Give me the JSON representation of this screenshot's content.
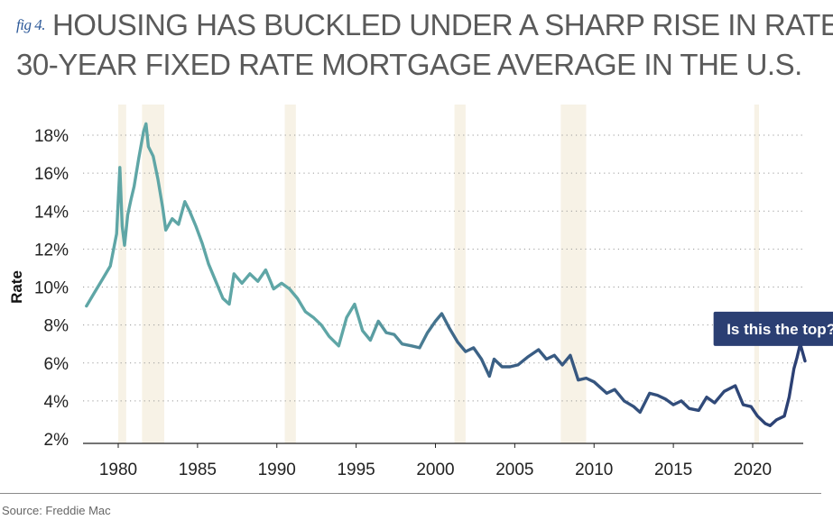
{
  "figure": {
    "fig_label": "fig 4.",
    "title_line1": "HOUSING HAS BUCKLED UNDER A SHARP RISE IN RATES:",
    "title_line2": "30-YEAR FIXED RATE MORTGAGE AVERAGE IN THE U.S.",
    "source": "Source: Freddie Mac"
  },
  "chart_data": {
    "type": "line",
    "title": "",
    "xlabel": "",
    "ylabel": "Rate",
    "xlim": [
      1977.8,
      2023.5
    ],
    "ylim": [
      2,
      19
    ],
    "yticks": [
      2,
      4,
      6,
      8,
      10,
      12,
      14,
      16,
      18
    ],
    "ytick_labels": [
      "2%",
      "4%",
      "6%",
      "8%",
      "10%",
      "12%",
      "14%",
      "16%",
      "18%"
    ],
    "xticks": [
      1980,
      1985,
      1990,
      1995,
      2000,
      2005,
      2010,
      2015,
      2020
    ],
    "xtick_labels": [
      "1980",
      "1985",
      "1990",
      "1995",
      "2000",
      "2005",
      "2010",
      "2015",
      "2020"
    ],
    "grid": "horizontal-dotted",
    "recessions": [
      [
        1980.0,
        1980.5
      ],
      [
        1981.5,
        1982.9
      ],
      [
        1990.5,
        1991.2
      ],
      [
        2001.2,
        2001.9
      ],
      [
        2007.9,
        2009.5
      ],
      [
        2020.1,
        2020.4
      ]
    ],
    "recession_color": "#f7f2e6",
    "line_color_start": "#5fa6a6",
    "line_color_end": "#2b3f73",
    "annotation": {
      "text": "Is this the top?",
      "x": 2021.8,
      "y": 7.8,
      "bg": "#2b3f73",
      "fg": "#ffffff"
    },
    "series": [
      {
        "x": [
          1978.0,
          1978.5,
          1979.0,
          1979.5,
          1979.9,
          1980.1,
          1980.25,
          1980.4,
          1980.6,
          1980.8,
          1981.0,
          1981.3,
          1981.6,
          1981.75,
          1981.9,
          1982.2,
          1982.5,
          1982.8,
          1983.0,
          1983.4,
          1983.8,
          1984.2,
          1984.5,
          1984.9,
          1985.3,
          1985.7,
          1986.2,
          1986.6,
          1987.0,
          1987.3,
          1987.8,
          1988.3,
          1988.8,
          1989.3,
          1989.8,
          1990.3,
          1990.8,
          1991.3,
          1991.8,
          1992.3,
          1992.8,
          1993.3,
          1993.9,
          1994.4,
          1994.9,
          1995.4,
          1995.9,
          1996.4,
          1996.9,
          1997.4,
          1997.9,
          1998.5,
          1999.0,
          1999.5,
          2000.0,
          2000.4,
          2000.9,
          2001.4,
          2001.9,
          2002.4,
          2002.9,
          2003.4,
          2003.7,
          2004.2,
          2004.7,
          2005.2,
          2005.8,
          2006.5,
          2007.0,
          2007.5,
          2008.0,
          2008.5,
          2009.0,
          2009.5,
          2010.0,
          2010.8,
          2011.3,
          2011.9,
          2012.5,
          2012.9,
          2013.5,
          2014.0,
          2014.5,
          2015.0,
          2015.5,
          2016.0,
          2016.6,
          2017.1,
          2017.6,
          2018.2,
          2018.9,
          2019.4,
          2019.9,
          2020.3,
          2020.8,
          2021.1,
          2021.5,
          2022.0,
          2022.3,
          2022.6,
          2022.8,
          2023.0,
          2023.3
        ],
        "y": [
          9.0,
          9.7,
          10.4,
          11.1,
          12.8,
          16.3,
          13.2,
          12.2,
          13.8,
          14.6,
          15.3,
          16.8,
          18.2,
          18.6,
          17.4,
          16.9,
          15.7,
          14.2,
          13.0,
          13.6,
          13.3,
          14.5,
          14.0,
          13.2,
          12.3,
          11.2,
          10.2,
          9.4,
          9.1,
          10.7,
          10.2,
          10.7,
          10.3,
          10.9,
          9.9,
          10.2,
          9.9,
          9.4,
          8.7,
          8.4,
          8.0,
          7.4,
          6.9,
          8.4,
          9.1,
          7.7,
          7.2,
          8.2,
          7.6,
          7.5,
          7.0,
          6.9,
          6.8,
          7.6,
          8.2,
          8.6,
          7.8,
          7.1,
          6.6,
          6.8,
          6.2,
          5.3,
          6.2,
          5.8,
          5.8,
          5.9,
          6.3,
          6.7,
          6.2,
          6.4,
          5.9,
          6.4,
          5.1,
          5.2,
          5.0,
          4.4,
          4.6,
          4.0,
          3.7,
          3.4,
          4.4,
          4.3,
          4.1,
          3.8,
          4.0,
          3.6,
          3.5,
          4.2,
          3.9,
          4.5,
          4.8,
          3.8,
          3.7,
          3.2,
          2.8,
          2.7,
          3.0,
          3.2,
          4.2,
          5.7,
          6.3,
          7.0,
          6.1
        ]
      }
    ]
  }
}
